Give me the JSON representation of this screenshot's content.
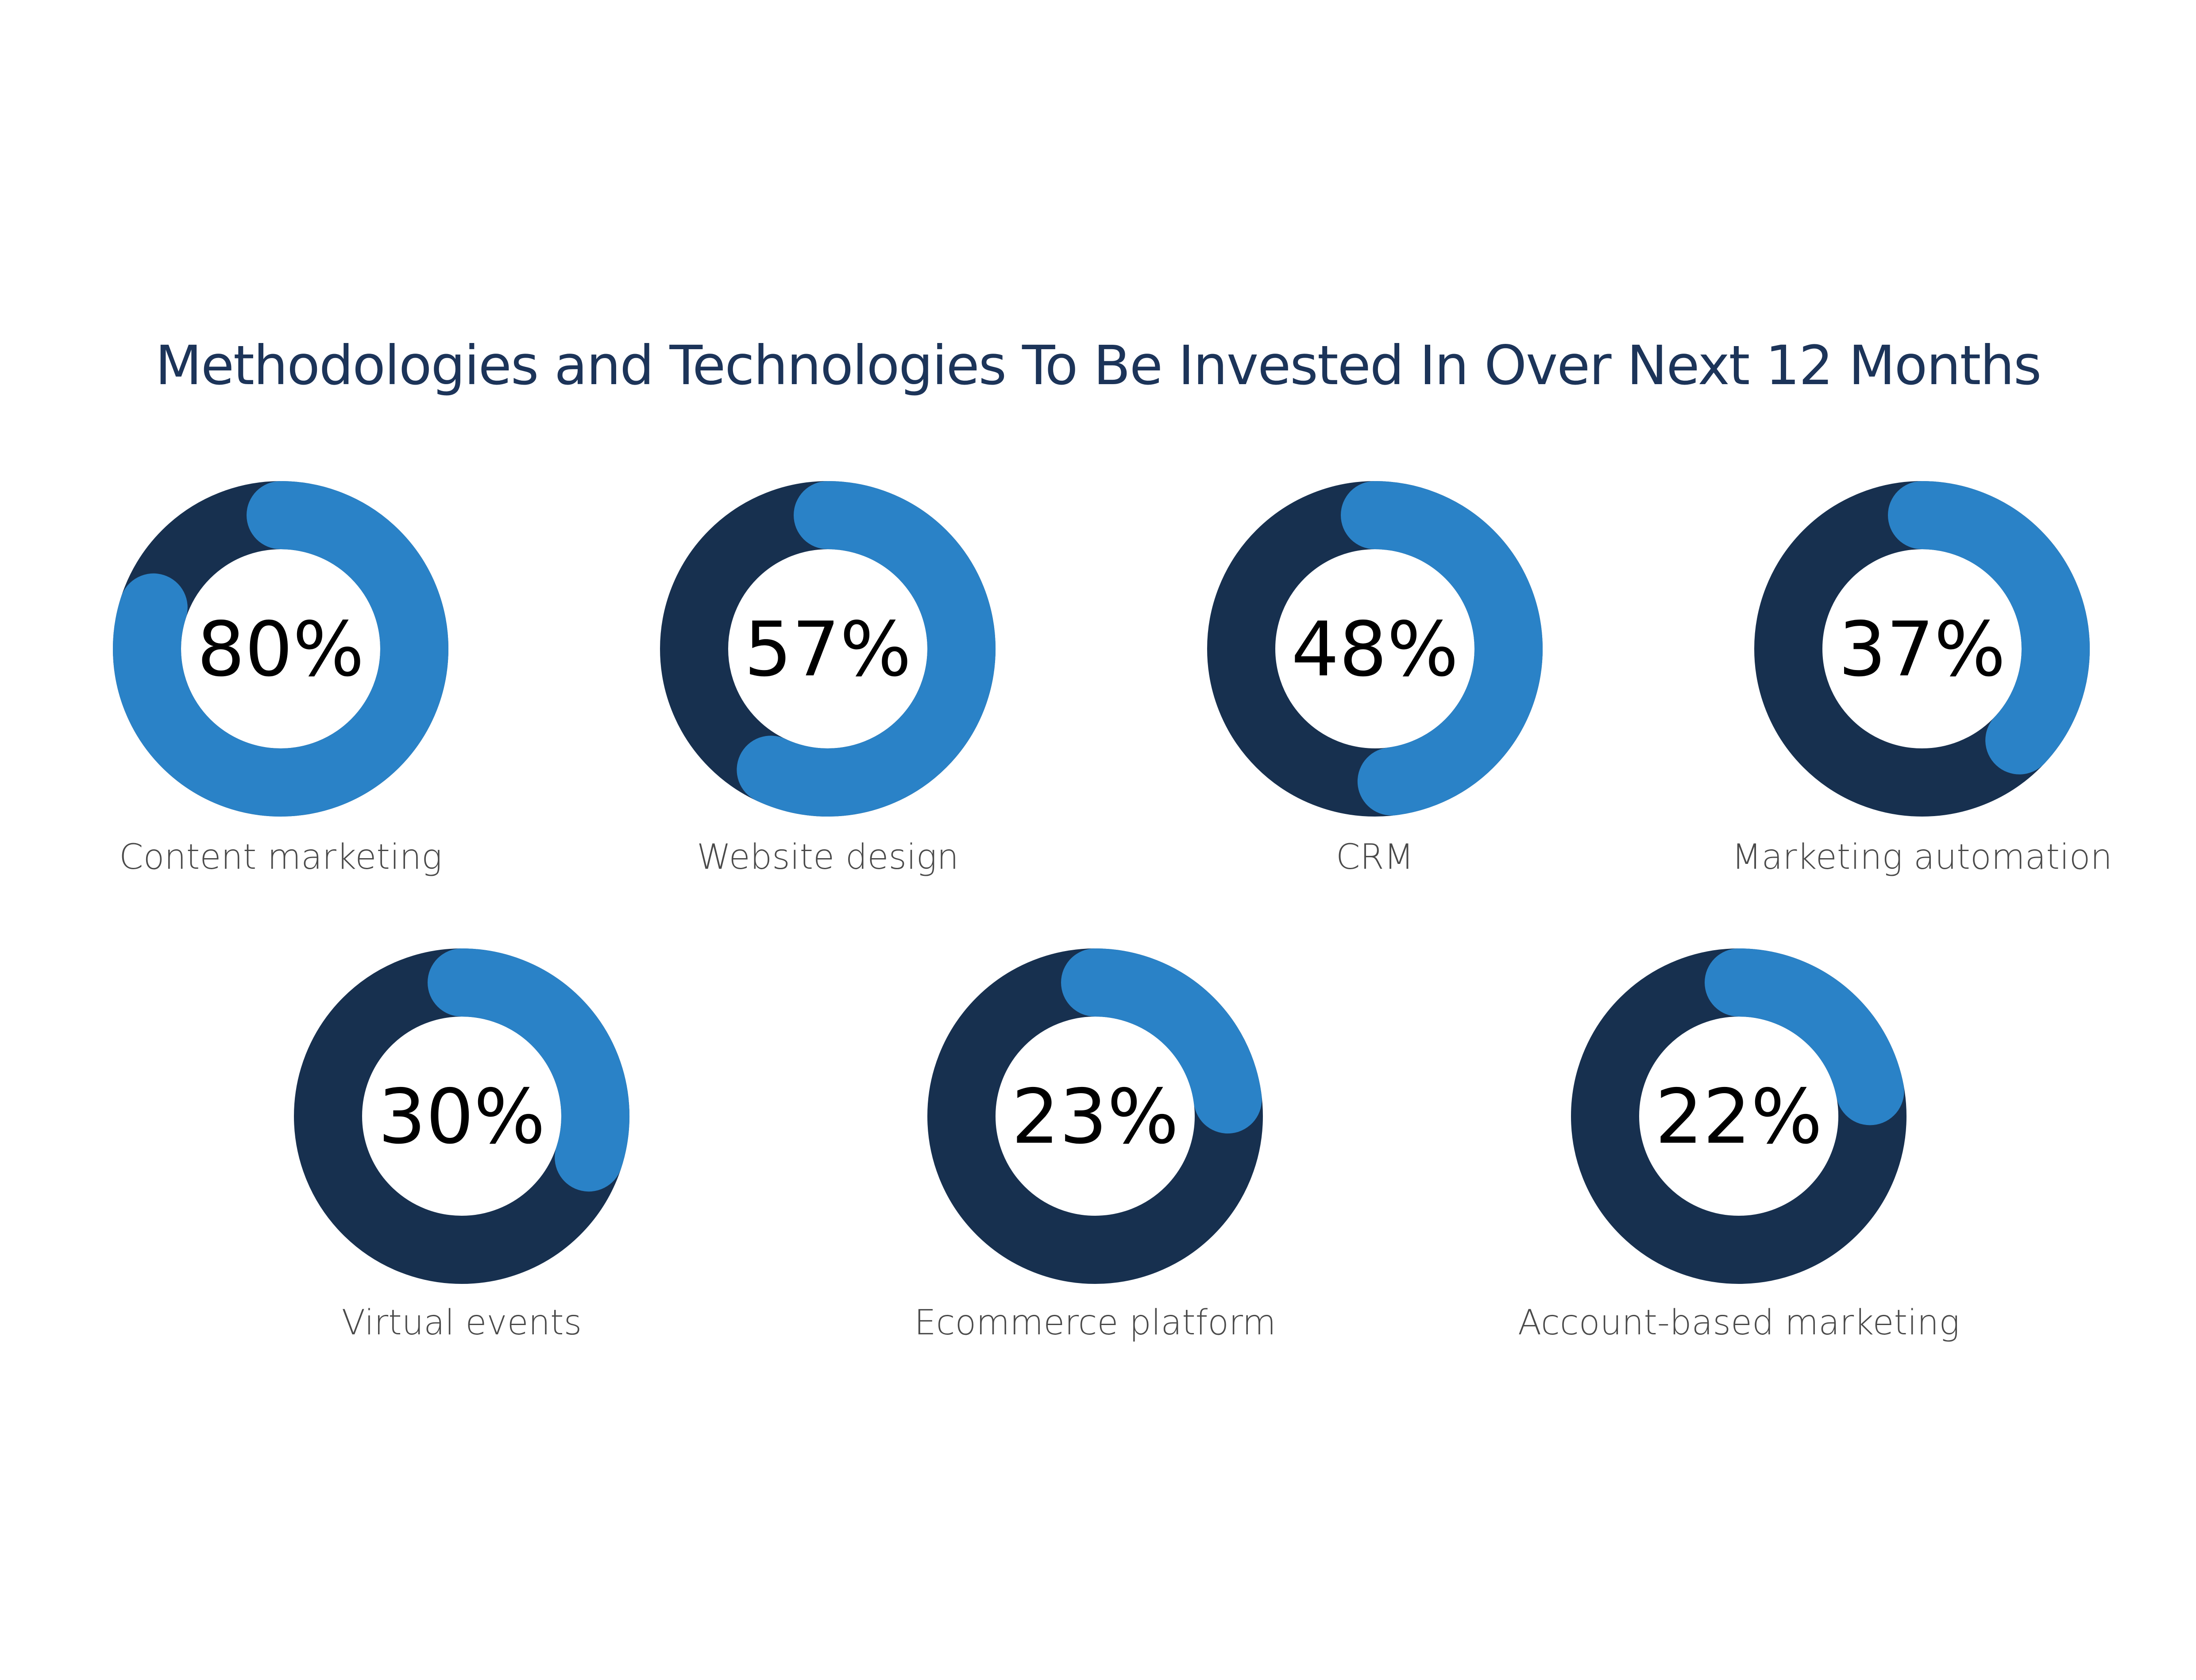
{
  "chart_data": {
    "type": "donut",
    "title": "Methodologies and Technologies To Be Invested In Over Next 12 Months",
    "unit": "%",
    "categories": [
      "Content marketing",
      "Website design",
      "CRM",
      "Marketing automation",
      "Virtual events",
      "Ecommerce platform",
      "Account-based marketing"
    ],
    "values": [
      80,
      57,
      48,
      37,
      30,
      23,
      22
    ],
    "value_labels": [
      "80%",
      "57%",
      "48%",
      "37%",
      "30%",
      "23%",
      "22%"
    ],
    "colors": {
      "value": "#2a82c7",
      "remainder": "#17304f",
      "title": "#1c3459"
    },
    "layout": "grid of donuts, 4 in top row, 3 in bottom row"
  }
}
